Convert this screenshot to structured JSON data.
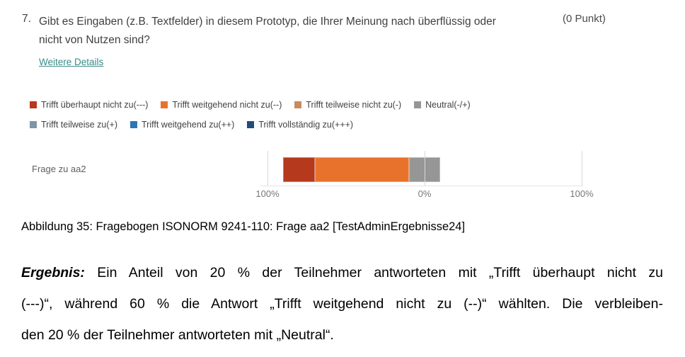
{
  "question": {
    "number": "7.",
    "line1": "Gibt es Eingaben (z.B. Textfelder) in diesem Prototyp, die Ihrer Meinung nach überflüssig oder",
    "line2": "nicht von Nutzen sind?",
    "points": "(0 Punkt)",
    "details_link": "Weitere Details"
  },
  "chart_data": {
    "type": "bar",
    "variant": "diverging_stacked_horizontal",
    "title": "",
    "categories": [
      "Frage zu aa2"
    ],
    "series": [
      {
        "name": "Trifft überhaupt nicht zu(---)",
        "color": "#b5391d",
        "group": "negative",
        "values": [
          20
        ]
      },
      {
        "name": "Trifft weitgehend nicht zu(--)",
        "color": "#e8722c",
        "group": "negative",
        "values": [
          60
        ]
      },
      {
        "name": "Trifft teilweise nicht zu(-)",
        "color": "#c98a5e",
        "group": "negative",
        "values": [
          0
        ]
      },
      {
        "name": "Neutral(-/+)",
        "color": "#969696",
        "group": "neutral",
        "values": [
          20
        ]
      },
      {
        "name": "Trifft teilweise zu(+)",
        "color": "#8193a7",
        "group": "positive",
        "values": [
          0
        ]
      },
      {
        "name": "Trifft weitgehend zu(++)",
        "color": "#2e75b6",
        "group": "positive",
        "values": [
          0
        ]
      },
      {
        "name": "Trifft vollständig zu(+++)",
        "color": "#1f4e79",
        "group": "positive",
        "values": [
          0
        ]
      }
    ],
    "axis": {
      "ticks": [
        "100%",
        "0%",
        "100%"
      ],
      "range_pct": [
        -100,
        100
      ]
    },
    "legend_position": "top",
    "grid": true
  },
  "caption": "Abbildung 35: Fragebogen ISONORM 9241-110: Frage aa2 [TestAdminErgebnisse24]",
  "result": {
    "label": "Ergebnis:",
    "line1_rest": " Ein Anteil von 20 % der Teilnehmer antworteten mit „Trifft überhaupt nicht zu",
    "line2": "(---)“, während 60 % die Antwort „Trifft weitgehend nicht zu (--)“ wählten. Die verbleiben-",
    "line3": "den 20 % der Teilnehmer antworteten mit „Neutral“."
  },
  "colors": {
    "link_teal": "#398c8a",
    "question_text": "#3f3f3f",
    "axis_label": "#777777",
    "gridline": "#d8d8d8"
  }
}
